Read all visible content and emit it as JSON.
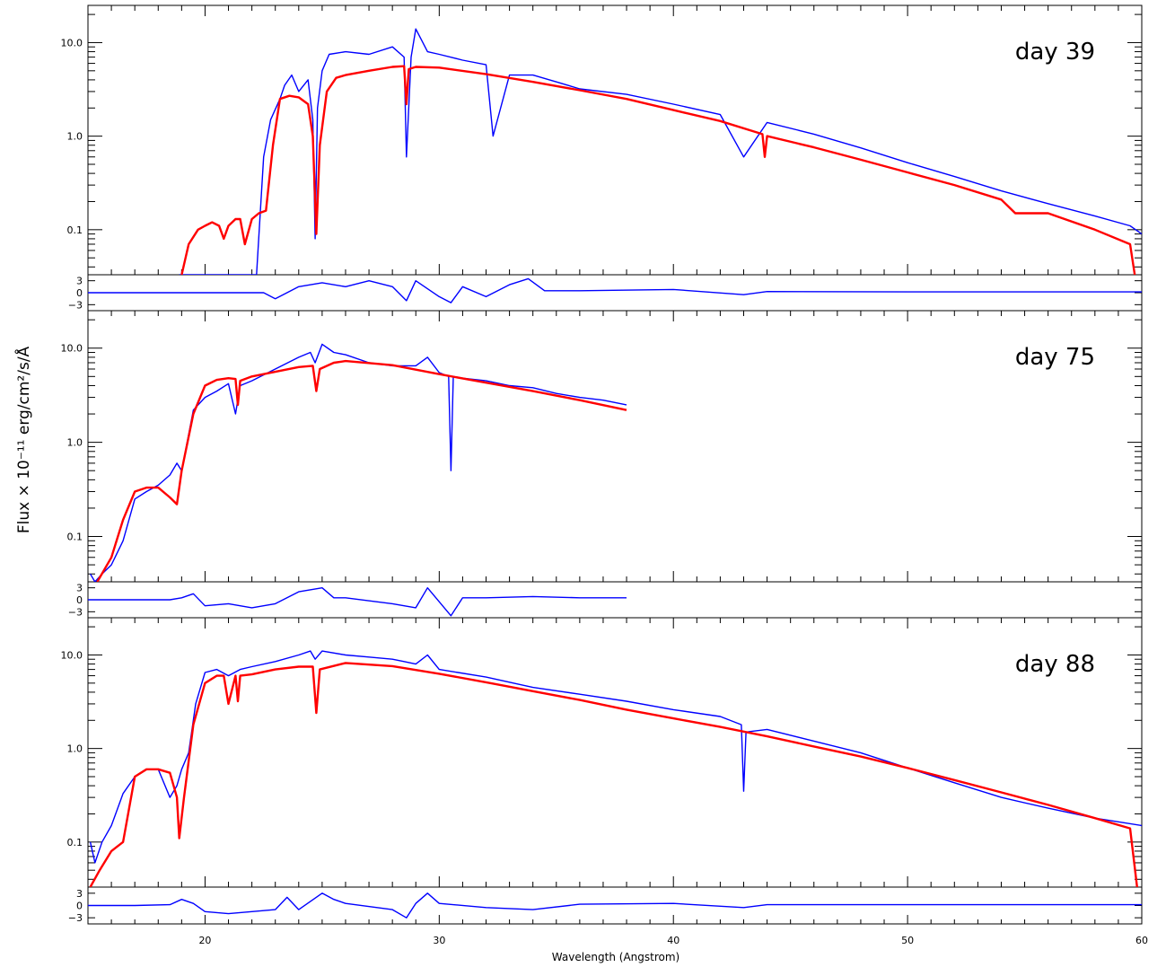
{
  "chart_data": {
    "type": "line",
    "ylabel": "Flux × 10⁻¹¹ erg/cm²/s/Å",
    "xlabel": "Wavelength (Angstrom)",
    "x_axis": {
      "range": [
        15,
        60
      ],
      "tick_labels": [
        "20",
        "30",
        "40",
        "50",
        "60"
      ],
      "ticks": [
        20,
        30,
        40,
        50,
        60
      ]
    },
    "flux_axis": {
      "scale": "log",
      "range": [
        0.033,
        25
      ],
      "tick_labels": [
        "0.1",
        "1.0",
        "10.0"
      ],
      "ticks": [
        0.1,
        1.0,
        10.0
      ]
    },
    "residual_axis": {
      "range": [
        -4.5,
        4.5
      ],
      "tick_labels": [
        "3",
        "0",
        "−3"
      ],
      "ticks": [
        3,
        0,
        -3
      ]
    },
    "grid": false,
    "colors": {
      "data": "#0000ff",
      "model": "#ff0000",
      "axes": "#000000"
    },
    "panels": [
      {
        "label": "day 39",
        "series": [
          {
            "role": "data",
            "color": "#0000ff",
            "x": [
              18.9,
              19.9,
              20.9,
              21.7,
              22.2,
              22.5,
              22.8,
              23.2,
              23.4,
              23.7,
              24.0,
              24.4,
              24.6,
              24.7,
              24.8,
              25.0,
              25.3,
              26.0,
              27.0,
              28.0,
              28.5,
              28.6,
              28.8,
              29.0,
              29.5,
              30.0,
              31.0,
              32.0,
              32.3,
              33.0,
              34.0,
              35.0,
              36.0,
              38.0,
              40.0,
              42.0,
              43.0,
              44.0,
              46.0,
              48.0,
              50.0,
              52.0,
              54.0,
              56.0,
              58.0,
              59.5,
              60.0
            ],
            "y": [
              0.033,
              0.033,
              0.033,
              0.033,
              0.033,
              0.6,
              1.5,
              2.5,
              3.5,
              4.5,
              3.0,
              4.0,
              1.5,
              0.08,
              2.0,
              5.0,
              7.5,
              8.0,
              7.5,
              9.0,
              7.0,
              0.6,
              7.0,
              14.0,
              8.0,
              7.5,
              6.5,
              5.8,
              1.0,
              4.5,
              4.5,
              3.8,
              3.2,
              2.8,
              2.2,
              1.7,
              0.6,
              1.4,
              1.05,
              0.75,
              0.52,
              0.37,
              0.26,
              0.19,
              0.14,
              0.11,
              0.09
            ]
          },
          {
            "role": "model",
            "color": "#ff0000",
            "x": [
              19.0,
              19.3,
              19.7,
              20.0,
              20.3,
              20.6,
              20.8,
              21.0,
              21.3,
              21.5,
              21.7,
              22.0,
              22.3,
              22.6,
              22.9,
              23.2,
              23.6,
              24.0,
              24.4,
              24.6,
              24.75,
              24.9,
              25.2,
              25.6,
              26.0,
              27.0,
              28.0,
              28.5,
              28.6,
              28.7,
              29.0,
              30.0,
              32.0,
              34.0,
              36.0,
              38.0,
              40.0,
              42.0,
              43.8,
              43.9,
              44.0,
              46.0,
              48.0,
              50.0,
              52.0,
              54.0,
              54.6,
              56.0,
              58.0,
              59.5,
              59.7
            ],
            "y": [
              0.033,
              0.07,
              0.1,
              0.11,
              0.12,
              0.11,
              0.08,
              0.11,
              0.13,
              0.13,
              0.07,
              0.13,
              0.15,
              0.16,
              0.8,
              2.5,
              2.7,
              2.6,
              2.2,
              1.0,
              0.09,
              0.8,
              3.0,
              4.2,
              4.5,
              5.0,
              5.5,
              5.6,
              2.2,
              5.2,
              5.5,
              5.4,
              4.6,
              3.8,
              3.1,
              2.5,
              1.9,
              1.45,
              1.05,
              0.6,
              1.0,
              0.76,
              0.56,
              0.41,
              0.3,
              0.21,
              0.15,
              0.15,
              0.1,
              0.07,
              0.033
            ]
          },
          {
            "role": "residual",
            "color": "#0000ff",
            "x": [
              15,
              22.5,
              23,
              24,
              25,
              26,
              27,
              28,
              28.6,
              29,
              30,
              30.5,
              31,
              32,
              33,
              33.8,
              34.5,
              36,
              40,
              43,
              44,
              50,
              60
            ],
            "y": [
              0,
              0,
              -1.5,
              1.5,
              2.5,
              1.5,
              3,
              1.5,
              -2,
              3,
              -1,
              -2.5,
              1.5,
              -1,
              2,
              3.5,
              0.5,
              0.5,
              0.8,
              -0.5,
              0.3,
              0.2,
              0.2
            ]
          }
        ]
      },
      {
        "label": "day 75",
        "series": [
          {
            "role": "data",
            "color": "#0000ff",
            "x": [
              15.1,
              15.3,
              15.6,
              16.0,
              16.5,
              17.0,
              17.5,
              18.0,
              18.5,
              18.8,
              19.0,
              19.5,
              20.0,
              20.5,
              21.0,
              21.3,
              21.5,
              22.0,
              23.0,
              24.0,
              24.5,
              24.7,
              25.0,
              25.5,
              26.0,
              27.0,
              28.0,
              29.0,
              29.5,
              30.0,
              30.4,
              30.5,
              30.6,
              31.0,
              32.0,
              33.0,
              34.0,
              35.0,
              36.0,
              37.0,
              38.0
            ],
            "y": [
              0.04,
              0.033,
              0.04,
              0.05,
              0.09,
              0.25,
              0.3,
              0.35,
              0.45,
              0.6,
              0.5,
              2.2,
              3.0,
              3.5,
              4.2,
              2.0,
              4.0,
              4.5,
              6.0,
              8.0,
              9.0,
              7.0,
              11.0,
              9.0,
              8.5,
              7.0,
              6.5,
              6.5,
              8.0,
              5.5,
              5.0,
              0.5,
              5.0,
              4.8,
              4.5,
              4.0,
              3.8,
              3.3,
              3.0,
              2.8,
              2.5
            ]
          },
          {
            "role": "model",
            "color": "#ff0000",
            "x": [
              15.4,
              16.0,
              16.5,
              17.0,
              17.5,
              18.0,
              18.5,
              18.8,
              19.0,
              19.5,
              20.0,
              20.5,
              21.0,
              21.3,
              21.4,
              21.5,
              22.0,
              23.0,
              24.0,
              24.6,
              24.75,
              24.9,
              25.5,
              26.0,
              28.0,
              30.0,
              32.0,
              34.0,
              36.0,
              38.0
            ],
            "y": [
              0.033,
              0.06,
              0.15,
              0.3,
              0.33,
              0.33,
              0.26,
              0.22,
              0.5,
              2.0,
              4.0,
              4.6,
              4.8,
              4.7,
              2.5,
              4.5,
              5.0,
              5.6,
              6.3,
              6.5,
              3.5,
              6.0,
              7.0,
              7.3,
              6.6,
              5.3,
              4.3,
              3.5,
              2.8,
              2.2
            ]
          },
          {
            "role": "residual",
            "color": "#0000ff",
            "x": [
              15,
              18.5,
              19,
              19.5,
              20,
              21,
              22,
              23,
              24,
              25,
              25.5,
              26,
              28,
              29,
              29.5,
              30,
              30.5,
              31,
              32,
              34,
              36,
              38
            ],
            "y": [
              0,
              0,
              0.5,
              1.5,
              -1.5,
              -1,
              -2,
              -1,
              2,
              3,
              0.5,
              0.5,
              -1,
              -2,
              3,
              -0.5,
              -4,
              0.5,
              0.5,
              0.8,
              0.5,
              0.5
            ]
          }
        ]
      },
      {
        "label": "day 88",
        "series": [
          {
            "role": "data",
            "color": "#0000ff",
            "x": [
              15.1,
              15.3,
              15.6,
              16.0,
              16.5,
              17.0,
              17.5,
              18.0,
              18.5,
              18.8,
              19.0,
              19.3,
              19.6,
              20.0,
              20.5,
              21.0,
              21.5,
              22.0,
              23.0,
              24.0,
              24.5,
              24.7,
              25.0,
              26.0,
              27.0,
              28.0,
              28.5,
              29.0,
              29.5,
              30.0,
              32.0,
              34.0,
              36.0,
              38.0,
              40.0,
              42.0,
              42.9,
              43.0,
              43.1,
              44.0,
              46.0,
              48.0,
              50.0,
              52.0,
              54.0,
              56.0,
              58.0,
              60.0
            ],
            "y": [
              0.1,
              0.06,
              0.1,
              0.15,
              0.33,
              0.5,
              0.6,
              0.6,
              0.3,
              0.4,
              0.6,
              0.9,
              3.0,
              6.5,
              7.0,
              6.0,
              7.0,
              7.5,
              8.5,
              10.0,
              11.0,
              9.0,
              11.0,
              10.0,
              9.5,
              9.0,
              8.5,
              8.0,
              10.0,
              7.0,
              5.8,
              4.5,
              3.8,
              3.2,
              2.6,
              2.2,
              1.8,
              0.35,
              1.5,
              1.6,
              1.2,
              0.9,
              0.62,
              0.43,
              0.3,
              0.23,
              0.18,
              0.15
            ]
          },
          {
            "role": "model",
            "color": "#ff0000",
            "x": [
              15.1,
              15.5,
              16.0,
              16.5,
              17.0,
              17.5,
              18.0,
              18.5,
              18.8,
              18.9,
              19.1,
              19.5,
              20.0,
              20.5,
              20.8,
              21.0,
              21.3,
              21.4,
              21.5,
              22.0,
              23.0,
              24.0,
              24.6,
              24.75,
              24.9,
              26.0,
              28.0,
              30.0,
              32.0,
              34.0,
              36.0,
              38.0,
              40.0,
              42.0,
              44.0,
              46.0,
              48.0,
              50.0,
              52.0,
              54.0,
              56.0,
              58.0,
              59.5,
              59.8
            ],
            "y": [
              0.033,
              0.05,
              0.08,
              0.1,
              0.5,
              0.6,
              0.6,
              0.55,
              0.3,
              0.11,
              0.3,
              1.8,
              5.0,
              6.0,
              6.0,
              3.0,
              6.0,
              3.2,
              6.0,
              6.2,
              7.0,
              7.5,
              7.5,
              2.4,
              7.0,
              8.2,
              7.6,
              6.3,
              5.1,
              4.1,
              3.3,
              2.6,
              2.1,
              1.7,
              1.35,
              1.05,
              0.82,
              0.62,
              0.46,
              0.34,
              0.25,
              0.18,
              0.14,
              0.033
            ]
          },
          {
            "role": "residual",
            "color": "#0000ff",
            "x": [
              15,
              17,
              18.5,
              19,
              19.5,
              20,
              21,
              22,
              23,
              23.5,
              24,
              25,
              25.5,
              26,
              28,
              28.6,
              29,
              29.5,
              30,
              32,
              34,
              36,
              40,
              43,
              44,
              50,
              60
            ],
            "y": [
              0,
              0,
              0.2,
              1.5,
              0.5,
              -1.5,
              -2,
              -1.5,
              -1,
              2,
              -1,
              3,
              1.5,
              0.5,
              -1,
              -3,
              0.5,
              3,
              0.5,
              -0.5,
              -1,
              0.3,
              0.5,
              -0.5,
              0.2,
              0.2,
              0.2
            ]
          }
        ]
      }
    ]
  }
}
